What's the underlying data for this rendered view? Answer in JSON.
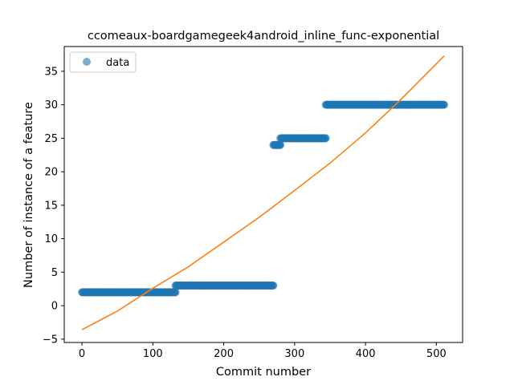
{
  "chart_data": {
    "type": "scatter",
    "title": "ccomeaux-boardgamegeek4android_inline_func-exponential",
    "xlabel": "Commit number",
    "ylabel": "Number of instance of a feature",
    "xlim": [
      -25,
      537
    ],
    "ylim": [
      -5.5,
      38.7
    ],
    "xticks": [
      0,
      100,
      200,
      300,
      400,
      500
    ],
    "yticks": [
      -5,
      0,
      5,
      10,
      15,
      20,
      25,
      30,
      35
    ],
    "grid": false,
    "legend": {
      "placement": "top-left",
      "entries": [
        "data"
      ]
    },
    "colors": {
      "data": "#1f77b4",
      "fit": "#ff7f0e"
    },
    "series": [
      {
        "name": "data",
        "kind": "scatter",
        "segments": [
          {
            "x_start": 0,
            "x_end": 132,
            "y": 2
          },
          {
            "x_start": 132,
            "x_end": 270,
            "y": 3
          },
          {
            "x_start": 270,
            "x_end": 280,
            "y": 24
          },
          {
            "x_start": 280,
            "x_end": 344,
            "y": 25
          },
          {
            "x_start": 344,
            "x_end": 511,
            "y": 30
          }
        ]
      },
      {
        "kind": "line",
        "x": [
          0,
          50,
          100,
          150,
          200,
          250,
          300,
          350,
          400,
          450,
          511
        ],
        "y": [
          -3.6,
          -0.8,
          2.6,
          5.8,
          9.5,
          13.2,
          17.2,
          21.3,
          25.8,
          30.8,
          37.3
        ]
      }
    ]
  }
}
